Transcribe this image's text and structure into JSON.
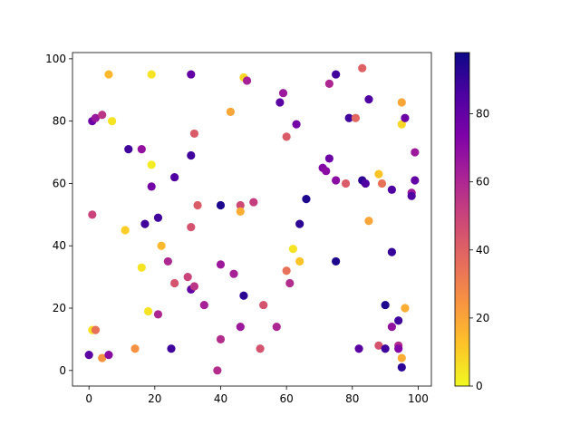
{
  "chart_data": {
    "type": "scatter",
    "title": "",
    "xlabel": "",
    "ylabel": "",
    "xlim": [
      -5,
      104
    ],
    "ylim": [
      -5,
      102
    ],
    "xticks": [
      0,
      20,
      40,
      60,
      80,
      100
    ],
    "yticks": [
      0,
      20,
      40,
      60,
      80,
      100
    ],
    "grid": false,
    "colormap": "plasma_r",
    "colorbar": {
      "range": [
        0,
        98
      ],
      "ticks": [
        0,
        20,
        40,
        60,
        80
      ]
    },
    "points": [
      {
        "x": 0,
        "y": 5,
        "c": 82
      },
      {
        "x": 1,
        "y": 80,
        "c": 78
      },
      {
        "x": 1,
        "y": 50,
        "c": 50
      },
      {
        "x": 1,
        "y": 13,
        "c": 5
      },
      {
        "x": 2,
        "y": 81,
        "c": 66
      },
      {
        "x": 2,
        "y": 13,
        "c": 35
      },
      {
        "x": 4,
        "y": 82,
        "c": 55
      },
      {
        "x": 4,
        "y": 4,
        "c": 25
      },
      {
        "x": 6,
        "y": 95,
        "c": 15
      },
      {
        "x": 6,
        "y": 5,
        "c": 70
      },
      {
        "x": 7,
        "y": 80,
        "c": 5
      },
      {
        "x": 11,
        "y": 45,
        "c": 10
      },
      {
        "x": 12,
        "y": 71,
        "c": 88
      },
      {
        "x": 14,
        "y": 7,
        "c": 25
      },
      {
        "x": 16,
        "y": 33,
        "c": 5
      },
      {
        "x": 16,
        "y": 71,
        "c": 68
      },
      {
        "x": 17,
        "y": 47,
        "c": 88
      },
      {
        "x": 18,
        "y": 19,
        "c": 5
      },
      {
        "x": 19,
        "y": 95,
        "c": 5
      },
      {
        "x": 19,
        "y": 66,
        "c": 3
      },
      {
        "x": 19,
        "y": 59,
        "c": 76
      },
      {
        "x": 21,
        "y": 49,
        "c": 88
      },
      {
        "x": 21,
        "y": 18,
        "c": 60
      },
      {
        "x": 22,
        "y": 40,
        "c": 15
      },
      {
        "x": 24,
        "y": 35,
        "c": 60
      },
      {
        "x": 25,
        "y": 7,
        "c": 88
      },
      {
        "x": 26,
        "y": 62,
        "c": 85
      },
      {
        "x": 26,
        "y": 28,
        "c": 45
      },
      {
        "x": 30,
        "y": 30,
        "c": 50
      },
      {
        "x": 31,
        "y": 95,
        "c": 80
      },
      {
        "x": 31,
        "y": 69,
        "c": 88
      },
      {
        "x": 31,
        "y": 46,
        "c": 45
      },
      {
        "x": 31,
        "y": 26,
        "c": 80
      },
      {
        "x": 32,
        "y": 76,
        "c": 42
      },
      {
        "x": 32,
        "y": 27,
        "c": 55
      },
      {
        "x": 33,
        "y": 53,
        "c": 42
      },
      {
        "x": 35,
        "y": 21,
        "c": 62
      },
      {
        "x": 39,
        "y": 0,
        "c": 58
      },
      {
        "x": 40,
        "y": 53,
        "c": 95
      },
      {
        "x": 40,
        "y": 34,
        "c": 65
      },
      {
        "x": 40,
        "y": 10,
        "c": 58
      },
      {
        "x": 43,
        "y": 83,
        "c": 20
      },
      {
        "x": 44,
        "y": 31,
        "c": 62
      },
      {
        "x": 46,
        "y": 53,
        "c": 48
      },
      {
        "x": 46,
        "y": 51,
        "c": 18
      },
      {
        "x": 46,
        "y": 14,
        "c": 65
      },
      {
        "x": 47,
        "y": 94,
        "c": 8
      },
      {
        "x": 47,
        "y": 24,
        "c": 92
      },
      {
        "x": 48,
        "y": 93,
        "c": 62
      },
      {
        "x": 50,
        "y": 54,
        "c": 52
      },
      {
        "x": 52,
        "y": 7,
        "c": 45
      },
      {
        "x": 53,
        "y": 21,
        "c": 45
      },
      {
        "x": 57,
        "y": 14,
        "c": 60
      },
      {
        "x": 58,
        "y": 86,
        "c": 82
      },
      {
        "x": 59,
        "y": 89,
        "c": 65
      },
      {
        "x": 60,
        "y": 75,
        "c": 42
      },
      {
        "x": 60,
        "y": 32,
        "c": 35
      },
      {
        "x": 61,
        "y": 28,
        "c": 58
      },
      {
        "x": 62,
        "y": 39,
        "c": 5
      },
      {
        "x": 63,
        "y": 79,
        "c": 76
      },
      {
        "x": 64,
        "y": 47,
        "c": 92
      },
      {
        "x": 64,
        "y": 35,
        "c": 12
      },
      {
        "x": 66,
        "y": 55,
        "c": 95
      },
      {
        "x": 71,
        "y": 65,
        "c": 72
      },
      {
        "x": 72,
        "y": 64,
        "c": 70
      },
      {
        "x": 73,
        "y": 92,
        "c": 60
      },
      {
        "x": 73,
        "y": 68,
        "c": 78
      },
      {
        "x": 75,
        "y": 95,
        "c": 88
      },
      {
        "x": 75,
        "y": 61,
        "c": 70
      },
      {
        "x": 75,
        "y": 35,
        "c": 95
      },
      {
        "x": 78,
        "y": 60,
        "c": 42
      },
      {
        "x": 79,
        "y": 81,
        "c": 88
      },
      {
        "x": 81,
        "y": 81,
        "c": 38
      },
      {
        "x": 82,
        "y": 7,
        "c": 82
      },
      {
        "x": 83,
        "y": 97,
        "c": 40
      },
      {
        "x": 83,
        "y": 61,
        "c": 92
      },
      {
        "x": 84,
        "y": 60,
        "c": 85
      },
      {
        "x": 85,
        "y": 87,
        "c": 85
      },
      {
        "x": 85,
        "y": 48,
        "c": 20
      },
      {
        "x": 88,
        "y": 63,
        "c": 12
      },
      {
        "x": 88,
        "y": 8,
        "c": 45
      },
      {
        "x": 89,
        "y": 60,
        "c": 35
      },
      {
        "x": 90,
        "y": 21,
        "c": 95
      },
      {
        "x": 90,
        "y": 7,
        "c": 88
      },
      {
        "x": 92,
        "y": 58,
        "c": 85
      },
      {
        "x": 92,
        "y": 38,
        "c": 90
      },
      {
        "x": 92,
        "y": 14,
        "c": 68
      },
      {
        "x": 94,
        "y": 16,
        "c": 88
      },
      {
        "x": 94,
        "y": 8,
        "c": 58
      },
      {
        "x": 94,
        "y": 7,
        "c": 72
      },
      {
        "x": 95,
        "y": 86,
        "c": 20
      },
      {
        "x": 95,
        "y": 79,
        "c": 8
      },
      {
        "x": 95,
        "y": 4,
        "c": 18
      },
      {
        "x": 95,
        "y": 1,
        "c": 92
      },
      {
        "x": 96,
        "y": 81,
        "c": 78
      },
      {
        "x": 96,
        "y": 20,
        "c": 18
      },
      {
        "x": 98,
        "y": 57,
        "c": 65
      },
      {
        "x": 98,
        "y": 56,
        "c": 85
      },
      {
        "x": 99,
        "y": 70,
        "c": 65
      },
      {
        "x": 99,
        "y": 61,
        "c": 80
      }
    ]
  }
}
